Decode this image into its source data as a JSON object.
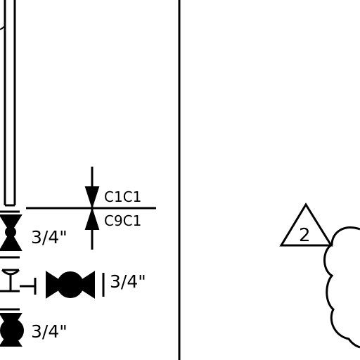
{
  "labels": {
    "valve_upper_size": "3/4\"",
    "valve_middle_size": "3/4\"",
    "valve_lower_size": "3/4\"",
    "tie_in_top_code": "C1C1",
    "tie_in_bottom_code": "C9C1",
    "revision_number": "2"
  }
}
